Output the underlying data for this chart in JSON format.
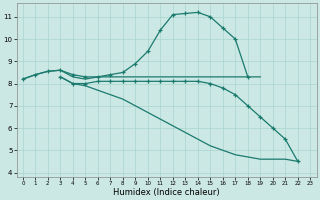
{
  "title": "",
  "xlabel": "Humidex (Indice chaleur)",
  "ylabel": "",
  "bg_color": "#cce8e4",
  "line_color": "#1a7a6e",
  "grid_color": "#aad4cf",
  "xlim": [
    -0.5,
    23.5
  ],
  "ylim": [
    3.8,
    11.6
  ],
  "yticks": [
    4,
    5,
    6,
    7,
    8,
    9,
    10,
    11
  ],
  "xticks": [
    0,
    1,
    2,
    3,
    4,
    5,
    6,
    7,
    8,
    9,
    10,
    11,
    12,
    13,
    14,
    15,
    16,
    17,
    18,
    19,
    20,
    21,
    22,
    23
  ],
  "series": [
    {
      "x": [
        0,
        1,
        2,
        3,
        4,
        5,
        6,
        7,
        8,
        9,
        10,
        11,
        12,
        13,
        14,
        15,
        16,
        17,
        18
      ],
      "y": [
        8.2,
        8.4,
        8.55,
        8.6,
        8.4,
        8.3,
        8.3,
        8.4,
        8.5,
        8.9,
        9.45,
        10.4,
        11.1,
        11.15,
        11.2,
        11.0,
        10.5,
        10.0,
        8.3
      ],
      "marker": true
    },
    {
      "x": [
        0,
        1,
        2,
        3,
        4,
        5,
        6,
        7,
        8,
        9,
        10,
        11,
        12,
        13,
        14,
        15,
        16,
        17,
        18,
        19
      ],
      "y": [
        8.2,
        8.4,
        8.55,
        8.6,
        8.3,
        8.2,
        8.3,
        8.3,
        8.3,
        8.3,
        8.3,
        8.3,
        8.3,
        8.3,
        8.3,
        8.3,
        8.3,
        8.3,
        8.3,
        8.3
      ],
      "marker": false
    },
    {
      "x": [
        3,
        4,
        5,
        6,
        7,
        8,
        9,
        10,
        11,
        12,
        13,
        14,
        15,
        16,
        17,
        18,
        19,
        20,
        21,
        22
      ],
      "y": [
        8.3,
        8.0,
        8.0,
        8.1,
        8.1,
        8.1,
        8.1,
        8.1,
        8.1,
        8.1,
        8.1,
        8.1,
        8.0,
        7.8,
        7.5,
        7.0,
        6.5,
        6.0,
        5.5,
        4.5
      ],
      "marker": true
    },
    {
      "x": [
        3,
        4,
        5,
        6,
        7,
        8,
        9,
        10,
        11,
        12,
        13,
        14,
        15,
        16,
        17,
        18,
        19,
        20,
        21,
        22
      ],
      "y": [
        8.3,
        8.0,
        7.9,
        7.7,
        7.5,
        7.3,
        7.0,
        6.7,
        6.4,
        6.1,
        5.8,
        5.5,
        5.2,
        5.0,
        4.8,
        4.7,
        4.6,
        4.6,
        4.6,
        4.5
      ],
      "marker": false
    }
  ]
}
